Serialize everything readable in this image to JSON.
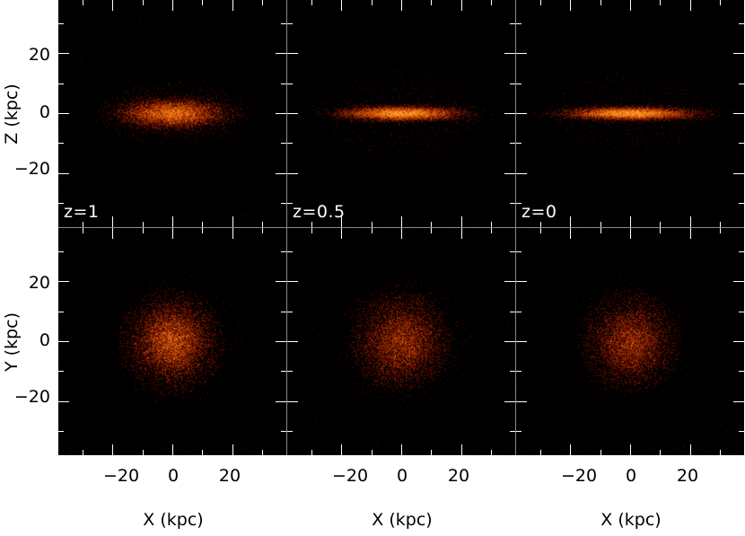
{
  "figure": {
    "panel_labels": {
      "col1": "z=1",
      "col2": "z=0.5",
      "col3": "z=0"
    },
    "y_title_top": "Z (kpc)",
    "y_title_bottom": "Y (kpc)",
    "x_title": "X (kpc)",
    "y_ticks": [
      "20",
      "0",
      "−20"
    ],
    "x_ticks": [
      "−20",
      "0",
      "20"
    ],
    "colormap": [
      "#000000",
      "#5a0a00",
      "#b03a00",
      "#ff8a1a",
      "#ffd27a",
      "#ffffff"
    ]
  }
}
